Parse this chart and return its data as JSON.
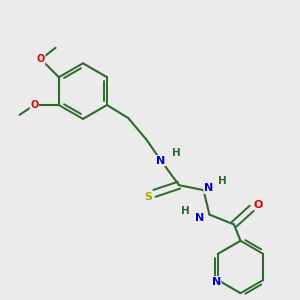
{
  "background_color": "#ebebeb",
  "bond_color": "#2d6b2d",
  "atom_colors": {
    "N": "#0000cc",
    "O": "#dd0000",
    "S": "#aaaa00",
    "H": "#2d6b2d",
    "C": "#2d6b2d"
  },
  "figsize": [
    3.0,
    3.0
  ],
  "dpi": 100
}
